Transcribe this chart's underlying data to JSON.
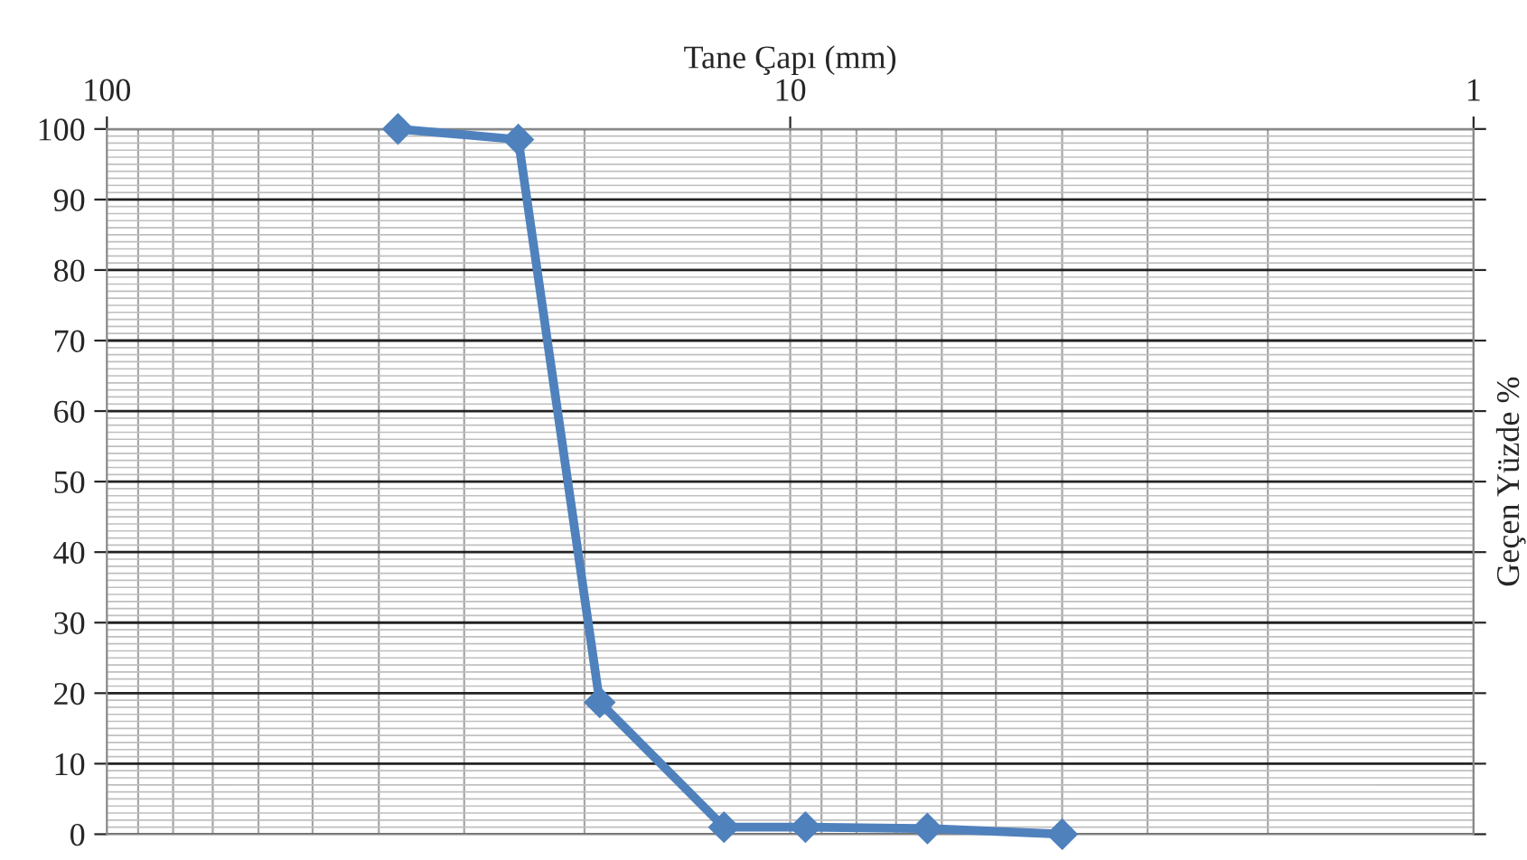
{
  "chart_data": {
    "type": "line",
    "xlabel": "Tane Çapı (mm)",
    "ylabel": "Geçen Yüzde %",
    "log": "x",
    "xlim": [
      100,
      1
    ],
    "xticks": [
      100,
      10,
      1
    ],
    "ylim": [
      0,
      100
    ],
    "yticks": [
      0,
      10,
      20,
      30,
      40,
      50,
      60,
      70,
      80,
      90,
      100
    ],
    "grid": true,
    "marker": "diamond",
    "line_style": "solid",
    "series": [
      {
        "color": "#4f81bd",
        "x": [
          37.5,
          25,
          19,
          12.5,
          9.5,
          6.3,
          4
        ],
        "values": [
          100,
          98.5,
          18.7,
          1,
          1,
          0.8,
          0
        ]
      }
    ]
  }
}
